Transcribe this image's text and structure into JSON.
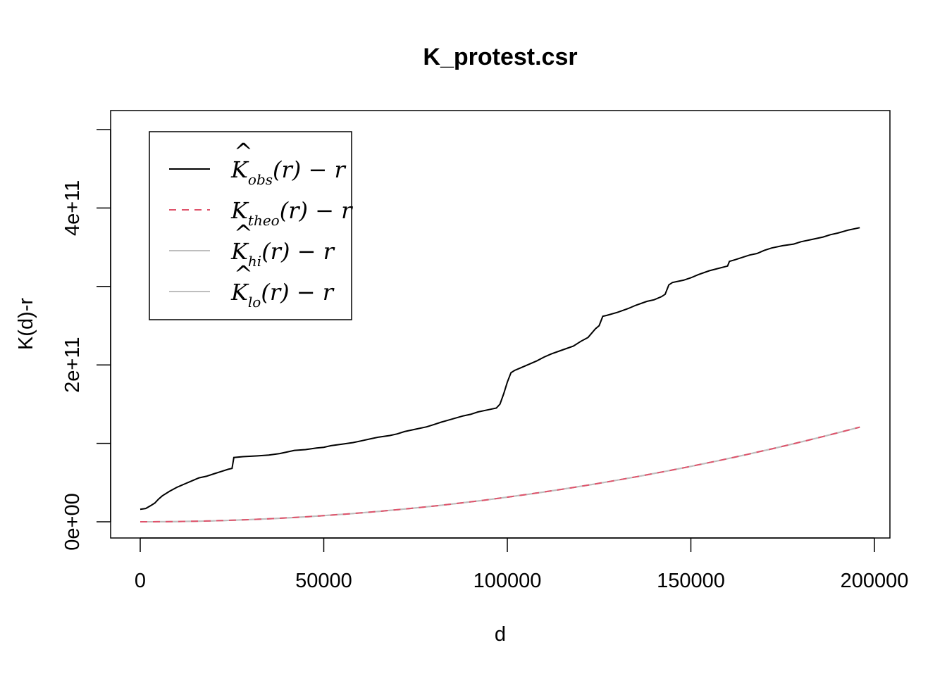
{
  "chart_data": {
    "type": "line",
    "title": "K_protest.csr",
    "xlabel": "d",
    "ylabel": "K(d)-r",
    "xlim": [
      0,
      200000
    ],
    "ylim": [
      0,
      500000000000
    ],
    "x_ticks": [
      0,
      50000,
      100000,
      150000,
      200000
    ],
    "x_tick_labels": [
      "0",
      "50000",
      "100000",
      "150000",
      "200000"
    ],
    "y_ticks": [
      0,
      100000000000,
      200000000000,
      300000000000,
      400000000000,
      500000000000
    ],
    "y_tick_labels": [
      "0e+00",
      "",
      "2e+11",
      "",
      "4e+11",
      ""
    ],
    "legend_position": "top-left",
    "series": [
      {
        "name": "K̂obs(r) − r",
        "legend": {
          "base": "K",
          "hat": true,
          "sub": "obs"
        },
        "color": "#000000",
        "dash": "solid",
        "x": [
          0,
          1500,
          3000,
          4000,
          5000,
          6000,
          8000,
          10000,
          12000,
          14000,
          16000,
          18000,
          20000,
          22000,
          24000,
          25000,
          25500,
          28000,
          32000,
          35000,
          38000,
          40000,
          42000,
          45000,
          48000,
          50000,
          52000,
          55000,
          58000,
          60000,
          63000,
          65000,
          68000,
          70000,
          72000,
          75000,
          78000,
          80000,
          82000,
          85000,
          88000,
          90000,
          92000,
          95000,
          97000,
          98000,
          99000,
          100000,
          101000,
          102000,
          103000,
          105000,
          108000,
          110000,
          112000,
          115000,
          118000,
          120000,
          122000,
          124000,
          125000,
          126000,
          127000,
          130000,
          133000,
          135000,
          138000,
          140000,
          142000,
          143000,
          144000,
          145000,
          148000,
          150000,
          152000,
          155000,
          160000,
          160500,
          162000,
          164000,
          166000,
          168000,
          170000,
          172000,
          175000,
          178000,
          180000,
          183000,
          186000,
          188000,
          190000,
          193000,
          196000
        ],
        "y": [
          16000000000,
          17000000000,
          21000000000,
          24000000000,
          29000000000,
          33000000000,
          39000000000,
          44000000000,
          48000000000,
          52000000000,
          56000000000,
          58000000000,
          61000000000,
          64000000000,
          67000000000,
          68000000000,
          82000000000,
          83000000000,
          84000000000,
          85000000000,
          87000000000,
          89000000000,
          91000000000,
          92000000000,
          94000000000,
          95000000000,
          97000000000,
          99000000000,
          101000000000,
          103000000000,
          106000000000,
          108000000000,
          110000000000,
          112000000000,
          115000000000,
          118000000000,
          121000000000,
          124000000000,
          127000000000,
          131000000000,
          135000000000,
          137000000000,
          140000000000,
          143000000000,
          145000000000,
          150000000000,
          163000000000,
          178000000000,
          190000000000,
          193000000000,
          195000000000,
          199000000000,
          205000000000,
          210000000000,
          214000000000,
          219000000000,
          224000000000,
          230000000000,
          235000000000,
          246000000000,
          250000000000,
          262000000000,
          263000000000,
          267000000000,
          272000000000,
          276000000000,
          281000000000,
          283000000000,
          287000000000,
          290000000000,
          302000000000,
          305000000000,
          308000000000,
          311000000000,
          315000000000,
          320000000000,
          326000000000,
          332000000000,
          334000000000,
          337000000000,
          340000000000,
          342000000000,
          346000000000,
          349000000000,
          352000000000,
          354000000000,
          357000000000,
          360000000000,
          363000000000,
          366000000000,
          368000000000,
          372000000000,
          375000000000
        ]
      },
      {
        "name": "Ktheo(r) − r",
        "legend": {
          "base": "K",
          "hat": false,
          "sub": "theo"
        },
        "color": "#DF536B",
        "dash": "dashed",
        "formula": "pi*x^2"
      },
      {
        "name": "K̂hi(r) − r",
        "legend": {
          "base": "K",
          "hat": true,
          "sub": "hi"
        },
        "color": "#BEBEBE",
        "dash": "solid",
        "formula": "pi*x^2"
      },
      {
        "name": "K̂lo(r) − r",
        "legend": {
          "base": "K",
          "hat": true,
          "sub": "lo"
        },
        "color": "#BEBEBE",
        "dash": "solid",
        "formula": "pi*x^2"
      }
    ]
  }
}
